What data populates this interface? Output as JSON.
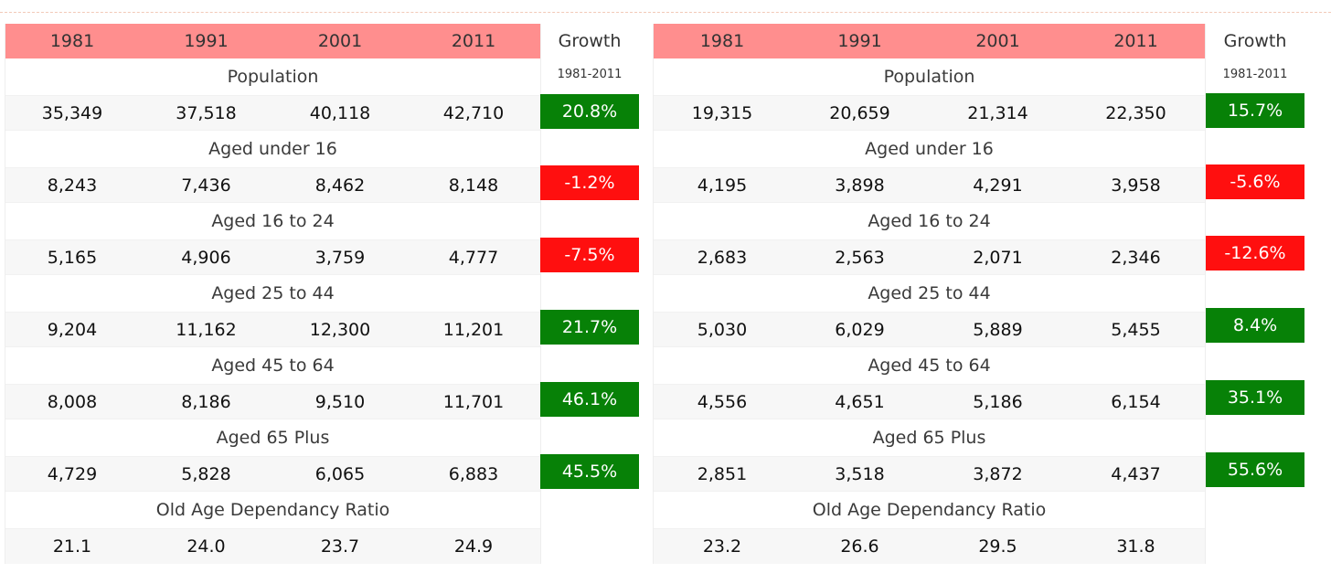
{
  "tables": [
    {
      "years": [
        "1981",
        "1991",
        "2001",
        "2011"
      ],
      "growth_title": "Growth",
      "growth_period": "1981-2011",
      "rows": [
        {
          "label": "Population",
          "values": [
            "35,349",
            "37,518",
            "40,118",
            "42,710"
          ],
          "growth": "20.8%",
          "growth_color": "#078107"
        },
        {
          "label": "Aged under 16",
          "values": [
            "8,243",
            "7,436",
            "8,462",
            "8,148"
          ],
          "growth": "-1.2%",
          "growth_color": "#ff0f0f"
        },
        {
          "label": "Aged 16 to 24",
          "values": [
            "5,165",
            "4,906",
            "3,759",
            "4,777"
          ],
          "growth": "-7.5%",
          "growth_color": "#ff0f0f"
        },
        {
          "label": "Aged 25 to 44",
          "values": [
            "9,204",
            "11,162",
            "12,300",
            "11,201"
          ],
          "growth": "21.7%",
          "growth_color": "#078107"
        },
        {
          "label": "Aged 45 to 64",
          "values": [
            "8,008",
            "8,186",
            "9,510",
            "11,701"
          ],
          "growth": "46.1%",
          "growth_color": "#078107"
        },
        {
          "label": "Aged 65 Plus",
          "values": [
            "4,729",
            "5,828",
            "6,065",
            "6,883"
          ],
          "growth": "45.5%",
          "growth_color": "#078107"
        },
        {
          "label": "Old Age Dependancy Ratio",
          "values": [
            "21.1",
            "24.0",
            "23.7",
            "24.9"
          ],
          "growth": null
        }
      ]
    },
    {
      "years": [
        "1981",
        "1991",
        "2001",
        "2011"
      ],
      "growth_title": "Growth",
      "growth_period": "1981-2011",
      "rows": [
        {
          "label": "Population",
          "values": [
            "19,315",
            "20,659",
            "21,314",
            "22,350"
          ],
          "growth": "15.7%",
          "growth_color": "#078107"
        },
        {
          "label": "Aged under 16",
          "values": [
            "4,195",
            "3,898",
            "4,291",
            "3,958"
          ],
          "growth": "-5.6%",
          "growth_color": "#ff0f0f"
        },
        {
          "label": "Aged 16 to 24",
          "values": [
            "2,683",
            "2,563",
            "2,071",
            "2,346"
          ],
          "growth": "-12.6%",
          "growth_color": "#ff0f0f"
        },
        {
          "label": "Aged 25 to 44",
          "values": [
            "5,030",
            "6,029",
            "5,889",
            "5,455"
          ],
          "growth": "8.4%",
          "growth_color": "#078107"
        },
        {
          "label": "Aged 45 to 64",
          "values": [
            "4,556",
            "4,651",
            "5,186",
            "6,154"
          ],
          "growth": "35.1%",
          "growth_color": "#078107"
        },
        {
          "label": "Aged 65 Plus",
          "values": [
            "2,851",
            "3,518",
            "3,872",
            "4,437"
          ],
          "growth": "55.6%",
          "growth_color": "#078107"
        },
        {
          "label": "Old Age Dependancy Ratio",
          "values": [
            "23.2",
            "26.6",
            "29.5",
            "31.8"
          ],
          "growth": null
        }
      ]
    }
  ],
  "colors": {
    "header_background": "#ff8e8e",
    "positive": "#078107",
    "negative": "#ff0f0f"
  }
}
